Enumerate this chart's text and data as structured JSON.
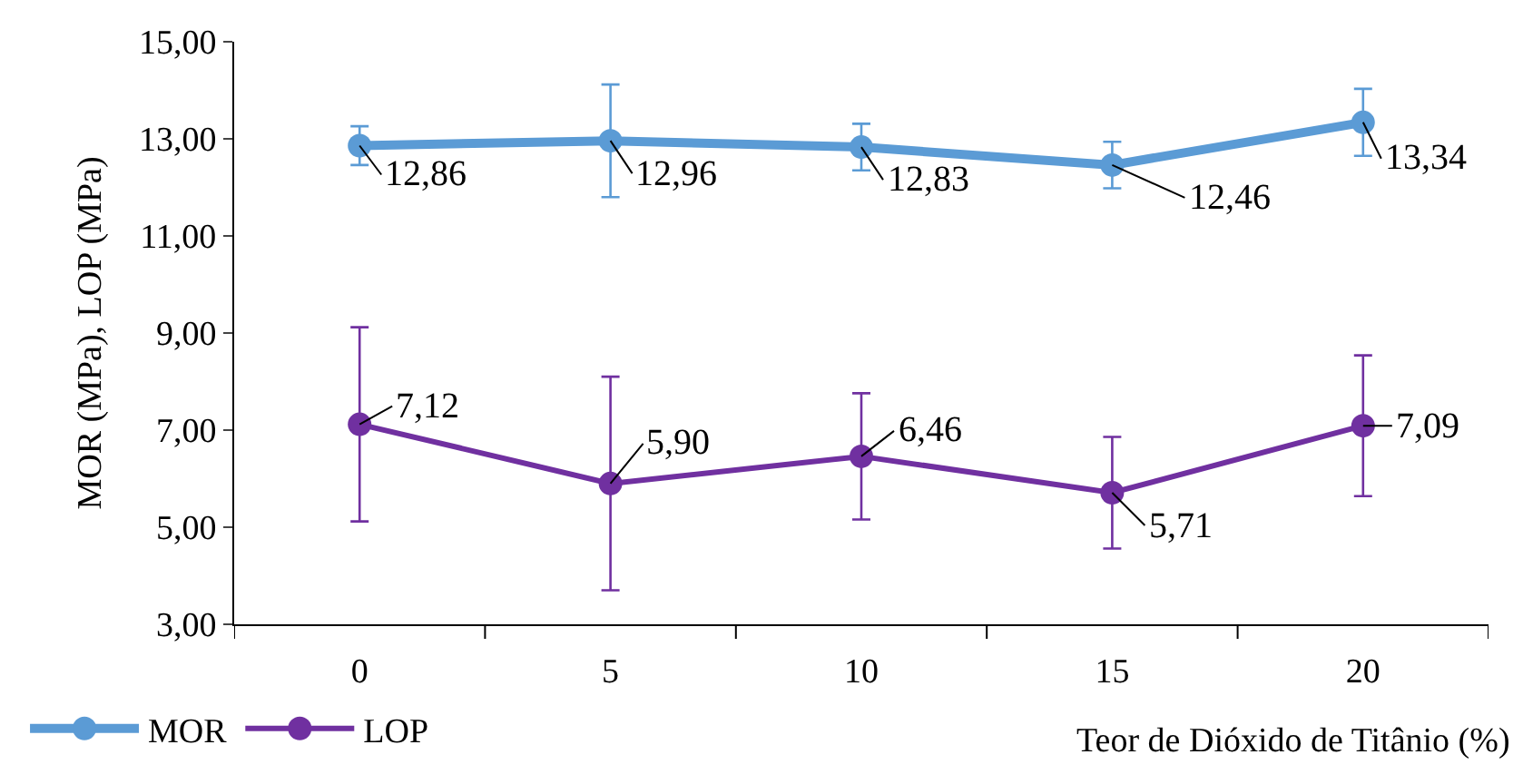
{
  "chart_data": {
    "type": "line",
    "xlabel": "Teor de Dióxido de Titânio (%)",
    "ylabel": "MOR (MPa), LOP (MPa)",
    "categories": [
      "0",
      "5",
      "10",
      "15",
      "20"
    ],
    "series": [
      {
        "name": "MOR",
        "color": "#5b9bd5",
        "values": [
          12.86,
          12.96,
          12.83,
          12.46,
          13.34
        ],
        "errors": [
          0.4,
          1.16,
          0.48,
          0.48,
          0.69
        ],
        "value_labels": [
          "12,86",
          "12,96",
          "12,83",
          "12,46",
          "13,34"
        ]
      },
      {
        "name": "LOP",
        "color": "#7030a0",
        "values": [
          7.12,
          5.9,
          6.46,
          5.71,
          7.09
        ],
        "errors": [
          2.0,
          2.2,
          1.3,
          1.15,
          1.45
        ],
        "value_labels": [
          "7,12",
          "5,90",
          "6,46",
          "5,71",
          "7,09"
        ]
      }
    ],
    "ylim": [
      3,
      15
    ],
    "yticks": [
      {
        "value": 3,
        "label": "3,00"
      },
      {
        "value": 5,
        "label": "5,00"
      },
      {
        "value": 7,
        "label": "7,00"
      },
      {
        "value": 9,
        "label": "9,00"
      },
      {
        "value": 11,
        "label": "11,00"
      },
      {
        "value": 13,
        "label": "13,00"
      },
      {
        "value": 15,
        "label": "15,00"
      }
    ],
    "legend": "bottom left",
    "marker": "circle",
    "line_style": "solid"
  }
}
